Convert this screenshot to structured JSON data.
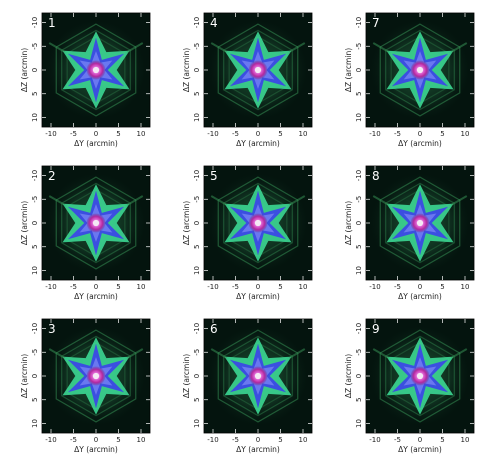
{
  "chart_data": {
    "type": "heatmap",
    "layout": {
      "rows": 3,
      "cols": 3,
      "order": "column-major"
    },
    "colors": {
      "background": "#04140e",
      "outer_halo": "#3a9a5a",
      "arm_green": "#3ee09a",
      "arm_blue": "#3b4fe0",
      "core_magenta": "#d93bd0",
      "core_white": "#f4e8f4"
    },
    "panels": [
      {
        "label": "1",
        "xlabel": "ΔY (arcmin)",
        "ylabel": "ΔZ (arcmin)",
        "xlim": [
          -12,
          12
        ],
        "ylim": [
          12,
          -12
        ],
        "xticks": [
          -10,
          -5,
          0,
          5,
          10
        ],
        "yticks": [
          -10,
          -5,
          0,
          5,
          10
        ]
      },
      {
        "label": "2",
        "xlabel": "ΔY (arcmin)",
        "ylabel": "ΔZ (arcmin)",
        "xlim": [
          -12,
          12
        ],
        "ylim": [
          12,
          -12
        ],
        "xticks": [
          -10,
          -5,
          0,
          5,
          10
        ],
        "yticks": [
          -10,
          -5,
          0,
          5,
          10
        ]
      },
      {
        "label": "3",
        "xlabel": "ΔY (arcmin)",
        "ylabel": "ΔZ (arcmin)",
        "xlim": [
          -12,
          12
        ],
        "ylim": [
          12,
          -12
        ],
        "xticks": [
          -10,
          -5,
          0,
          5,
          10
        ],
        "yticks": [
          -10,
          -5,
          0,
          5,
          10
        ]
      },
      {
        "label": "4",
        "xlabel": "ΔY (arcmin)",
        "ylabel": "ΔZ (arcmin)",
        "xlim": [
          -12,
          12
        ],
        "ylim": [
          12,
          -12
        ],
        "xticks": [
          -10,
          -5,
          0,
          5,
          10
        ],
        "yticks": [
          -10,
          -5,
          0,
          5,
          10
        ]
      },
      {
        "label": "5",
        "xlabel": "ΔY (arcmin)",
        "ylabel": "ΔZ (arcmin)",
        "xlim": [
          -12,
          12
        ],
        "ylim": [
          12,
          -12
        ],
        "xticks": [
          -10,
          -5,
          0,
          5,
          10
        ],
        "yticks": [
          -10,
          -5,
          0,
          5,
          10
        ]
      },
      {
        "label": "6",
        "xlabel": "ΔY (arcmin)",
        "ylabel": "ΔZ (arcmin)",
        "xlim": [
          -12,
          12
        ],
        "ylim": [
          12,
          -12
        ],
        "xticks": [
          -10,
          -5,
          0,
          5,
          10
        ],
        "yticks": [
          -10,
          -5,
          0,
          5,
          10
        ]
      },
      {
        "label": "7",
        "xlabel": "ΔY (arcmin)",
        "ylabel": "ΔZ (arcmin)",
        "xlim": [
          -12,
          12
        ],
        "ylim": [
          12,
          -12
        ],
        "xticks": [
          -10,
          -5,
          0,
          5,
          10
        ],
        "yticks": [
          -10,
          -5,
          0,
          5,
          10
        ]
      },
      {
        "label": "8",
        "xlabel": "ΔY (arcmin)",
        "ylabel": "ΔZ (arcmin)",
        "xlim": [
          -12,
          12
        ],
        "ylim": [
          12,
          -12
        ],
        "xticks": [
          -10,
          -5,
          0,
          5,
          10
        ],
        "yticks": [
          -10,
          -5,
          0,
          5,
          10
        ]
      },
      {
        "label": "9",
        "xlabel": "ΔY (arcmin)",
        "ylabel": "ΔZ (arcmin)",
        "xlim": [
          -12,
          12
        ],
        "ylim": [
          12,
          -12
        ],
        "xticks": [
          -10,
          -5,
          0,
          5,
          10
        ],
        "yticks": [
          -10,
          -5,
          0,
          5,
          10
        ]
      }
    ]
  }
}
